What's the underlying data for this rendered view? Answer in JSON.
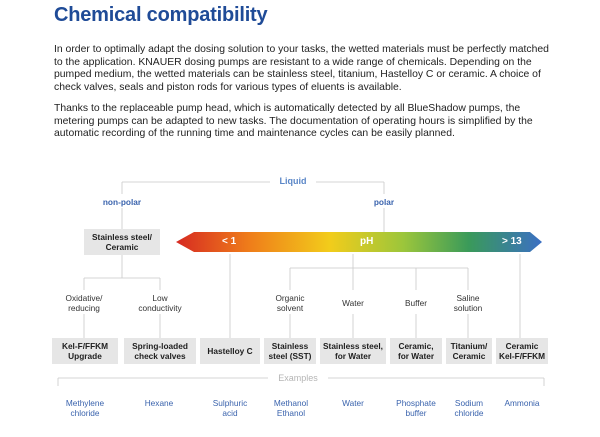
{
  "title": "Chemical compatibility",
  "paragraphs": [
    "In order to optimally adapt the dosing solution to your tasks, the wetted materials must be perfectly matched to the application. KNAUER dosing pumps are resistant to a wide range of chemicals. Depending on the pumped medium, the wetted materials can be stainless steel, titanium, Hastelloy C or ceramic. A choice of check valves, seals and piston rods for various types of eluents is available.",
    "Thanks to the replaceable pump head, which is automatically detected by all BlueShadow pumps, the metering pumps can be adapted to new tasks. The documentation of operating hours is simplified by the automatic recording of the running time and maintenance cycles can be easily planned."
  ],
  "diagram": {
    "root": "Liquid",
    "nonpolar": "non-polar",
    "polar": "polar",
    "nonpolar_material": "Stainless steel/\nCeramic",
    "ph_scale": {
      "low": "< 1",
      "mid": "pH",
      "high": "> 13"
    },
    "categories": [
      "Oxidative/\nreducing",
      "Low\nconductivity",
      "Organic\nsolvent",
      "Water",
      "Buffer",
      "Saline\nsolution"
    ],
    "materials": [
      "Kel-F/FFKM\nUpgrade",
      "Spring-loaded\ncheck valves",
      "Hastelloy C",
      "Stainless\nsteel (SST)",
      "Stainless steel,\nfor Water",
      "Ceramic,\nfor Water",
      "Titanium/\nCeramic",
      "Ceramic\nKel-F/FFKM"
    ],
    "examples_heading": "Examples",
    "examples": [
      "Methylene\nchloride",
      "Hexane",
      "Sulphuric\nacid",
      "Methanol\nEthanol",
      "Water",
      "Phosphate\nbuffer",
      "Sodium\nchloride",
      "Ammonia"
    ],
    "colors": {
      "title": "#1f4b97",
      "accent": "#3a63ad",
      "box": "#e6e6e6",
      "gradient": [
        "#d62a22",
        "#ef7d1a",
        "#f2cc1b",
        "#9cc63b",
        "#3a9a5a",
        "#3b6fc4"
      ]
    }
  }
}
